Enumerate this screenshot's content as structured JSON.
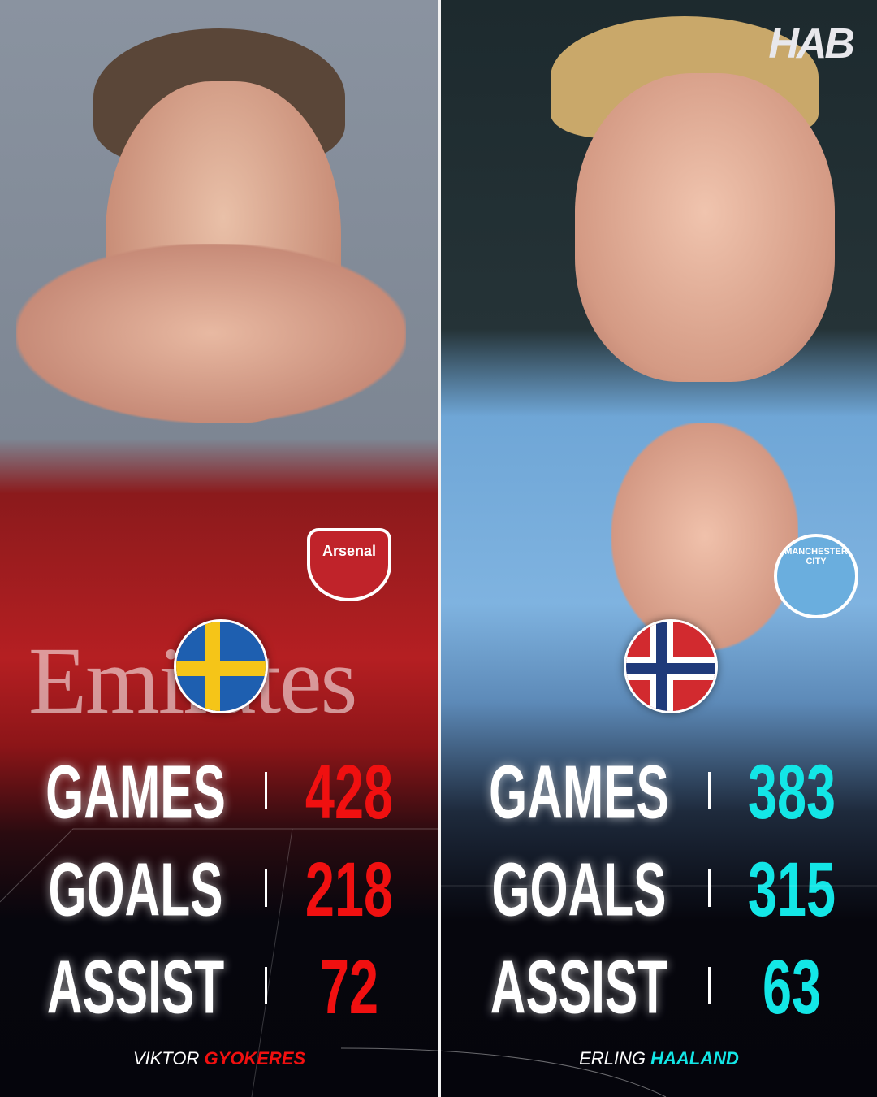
{
  "brand_logo": "HAB",
  "players": [
    {
      "first_name": "VIKTOR",
      "last_name": "GYOKERES",
      "flag": "sweden-flag",
      "club_crest": "Arsenal",
      "shirt_sponsor": "Emirates",
      "accent_color": "#f01010",
      "stats": [
        {
          "label": "GAMES",
          "value": "428"
        },
        {
          "label": "GOALS",
          "value": "218"
        },
        {
          "label": "ASSIST",
          "value": "72"
        }
      ]
    },
    {
      "first_name": "ERLING",
      "last_name": "HAALAND",
      "flag": "norway-flag",
      "club_crest": "MANCHESTER CITY",
      "accent_color": "#13e6e6",
      "stats": [
        {
          "label": "GAMES",
          "value": "383"
        },
        {
          "label": "GOALS",
          "value": "315"
        },
        {
          "label": "ASSIST",
          "value": "63"
        }
      ]
    }
  ]
}
